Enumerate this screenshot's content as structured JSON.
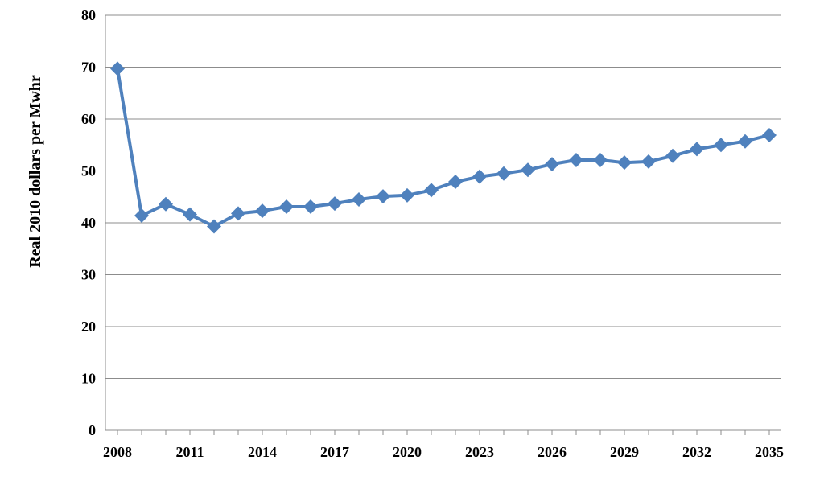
{
  "chart_data": {
    "type": "line",
    "title": "",
    "xlabel": "",
    "ylabel": "Real 2010 dollars per Mwhr",
    "ylim": [
      0,
      80
    ],
    "yticks": [
      "0",
      "10",
      "20",
      "30",
      "40",
      "50",
      "60",
      "70",
      "80"
    ],
    "xticks": [
      "2008",
      "2011",
      "2014",
      "2017",
      "2020",
      "2023",
      "2026",
      "2029",
      "2032",
      "2035"
    ],
    "grid": true,
    "legend": "none",
    "colors": {
      "series": "#4f81bd",
      "grid": "#8c8c8c"
    },
    "marker": "diamond",
    "x": [
      2008,
      2009,
      2010,
      2011,
      2012,
      2013,
      2014,
      2015,
      2016,
      2017,
      2018,
      2019,
      2020,
      2021,
      2022,
      2023,
      2024,
      2025,
      2026,
      2027,
      2028,
      2029,
      2030,
      2031,
      2032,
      2033,
      2034,
      2035
    ],
    "series": [
      {
        "values": [
          69.7,
          41.4,
          43.6,
          41.6,
          39.3,
          41.8,
          42.3,
          43.1,
          43.1,
          43.7,
          44.5,
          45.1,
          45.3,
          46.3,
          47.9,
          48.9,
          49.5,
          50.2,
          51.3,
          52.1,
          52.1,
          51.6,
          51.8,
          52.9,
          54.2,
          55.0,
          55.7,
          56.9
        ]
      }
    ]
  }
}
